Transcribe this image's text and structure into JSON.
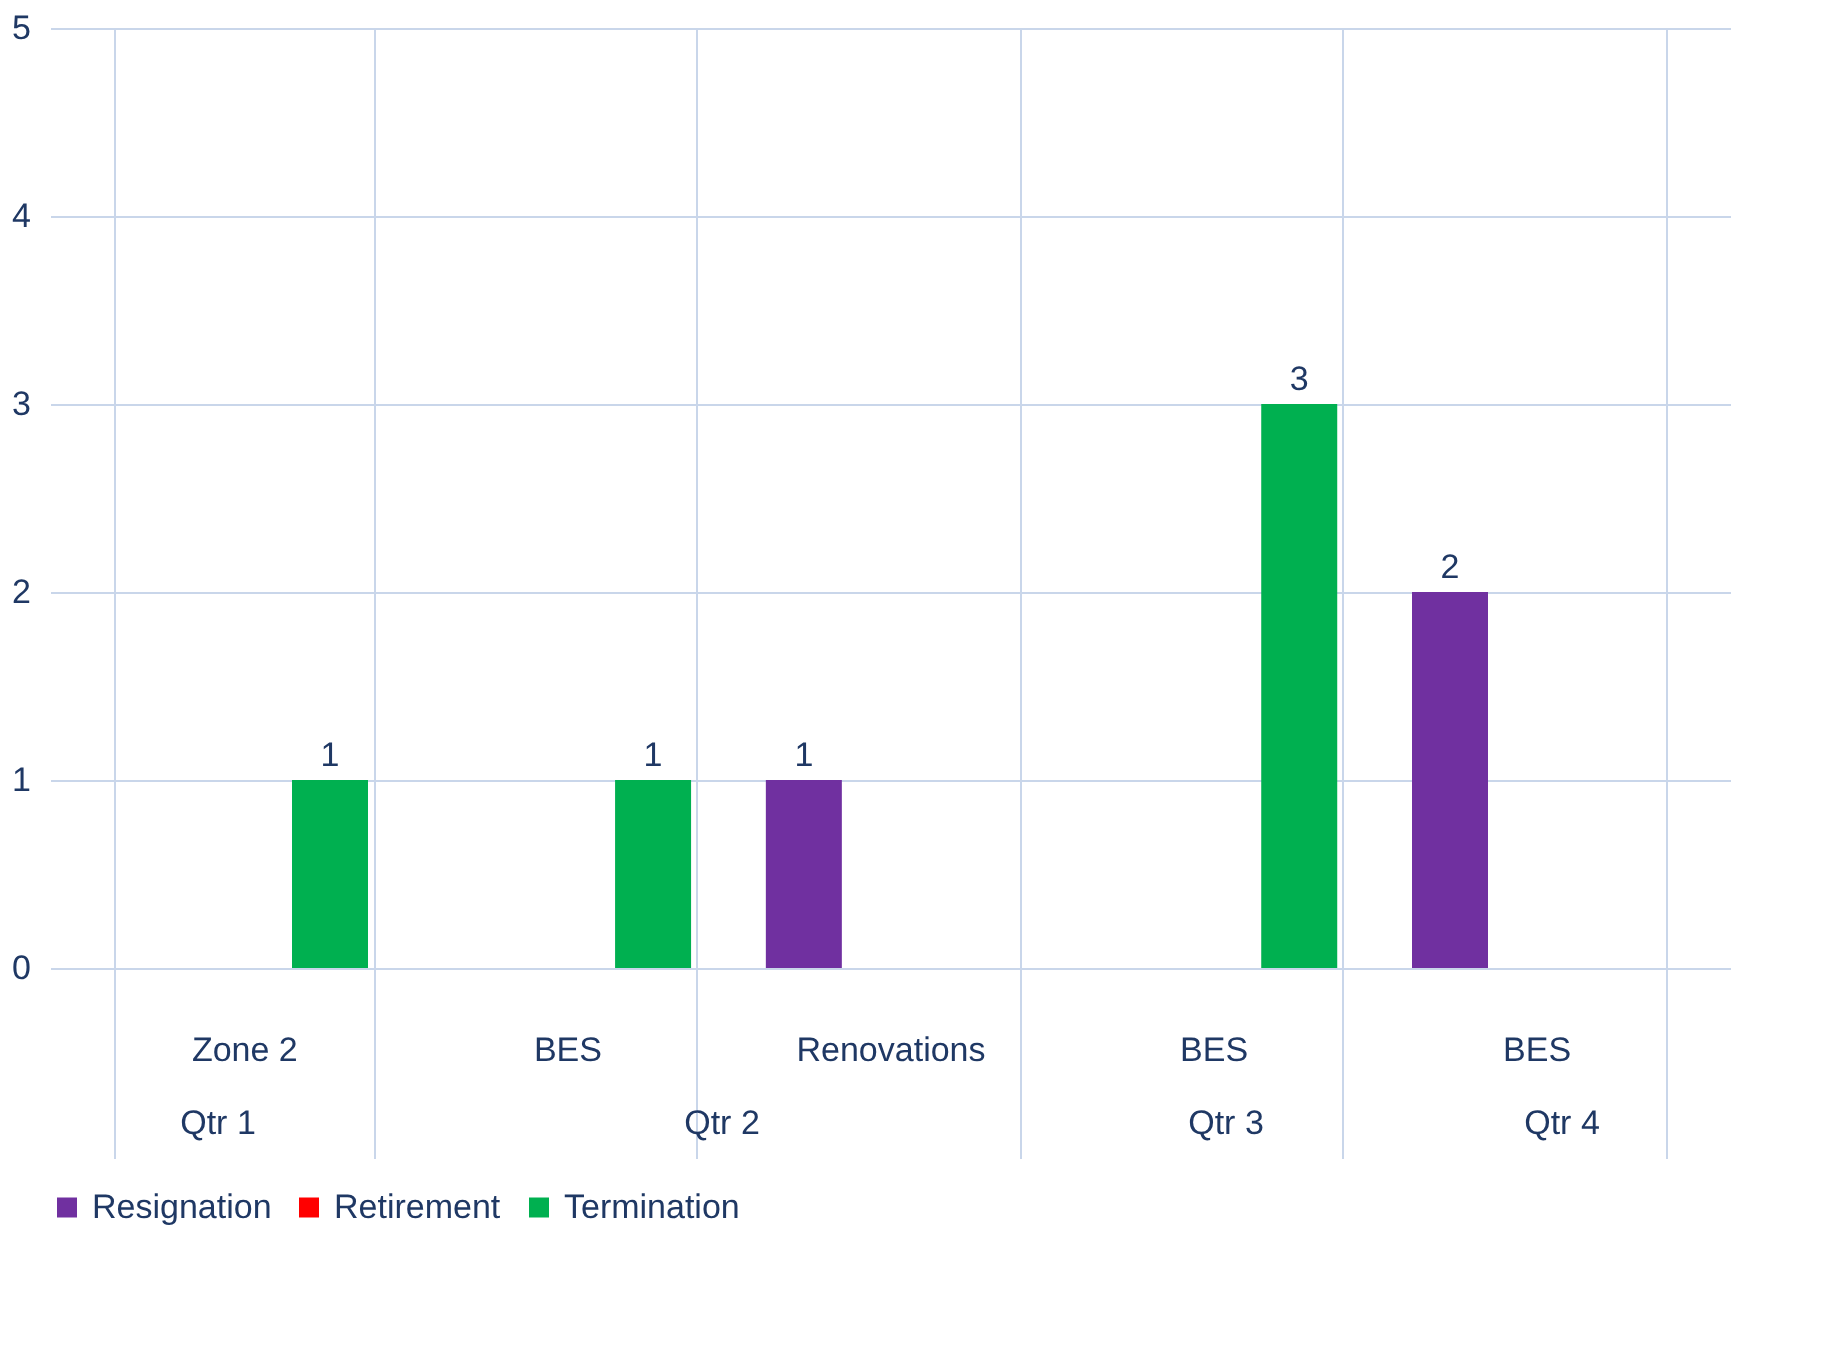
{
  "chart_data": {
    "type": "bar",
    "categories": [
      "Zone 2",
      "BES",
      "Renovations",
      "BES",
      "BES"
    ],
    "series": [
      {
        "name": "Resignation",
        "color": "#7030a0",
        "values": [
          null,
          null,
          1,
          null,
          2
        ]
      },
      {
        "name": "Retirement",
        "color": "#ff0000",
        "values": [
          null,
          null,
          null,
          null,
          null
        ]
      },
      {
        "name": "Termination",
        "color": "#00b050",
        "values": [
          1,
          1,
          null,
          3,
          null
        ]
      }
    ],
    "annotations": [
      "Qtr 1",
      "Qtr 2",
      "Qtr 3",
      "Qtr 4"
    ],
    "ylim": [
      0,
      5
    ],
    "yticks": [
      0,
      1,
      2,
      3,
      4,
      5
    ],
    "grid": "y",
    "legend": "bottom",
    "data_labels": true
  }
}
